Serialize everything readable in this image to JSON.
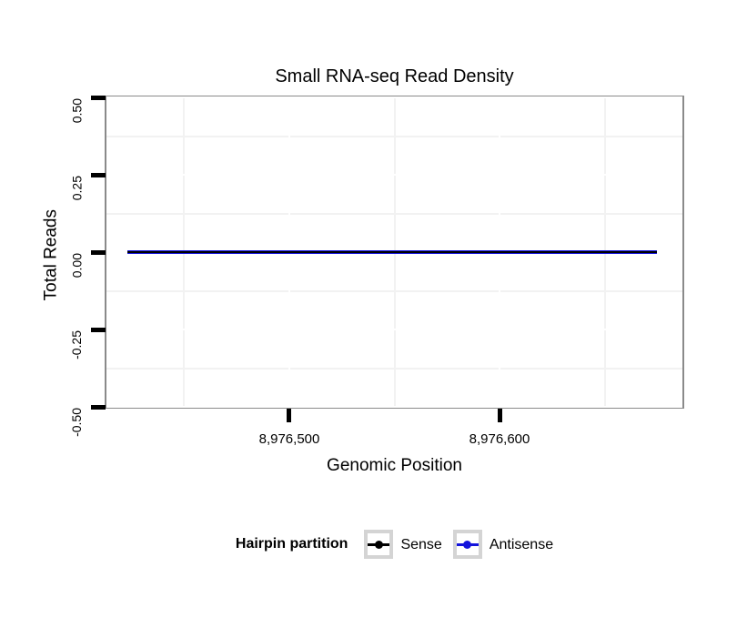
{
  "chart_data": {
    "type": "line",
    "title": "Small RNA-seq Read Density",
    "xlabel": "Genomic Position",
    "ylabel": "Total Reads",
    "x_axis": {
      "lim": [
        8976413,
        8976687
      ],
      "major_ticks": [
        {
          "value": 8976500,
          "label": "8,976,500"
        },
        {
          "value": 8976600,
          "label": "8,976,600"
        }
      ],
      "minor_ticks": [
        8976450,
        8976550,
        8976650
      ]
    },
    "y_axis": {
      "lim": [
        -0.5,
        0.5
      ],
      "major_ticks": [
        {
          "value": 0.5,
          "label": "0.50"
        },
        {
          "value": 0.25,
          "label": "0.25"
        },
        {
          "value": 0.0,
          "label": "0.00"
        },
        {
          "value": -0.25,
          "label": "-0.25"
        },
        {
          "value": -0.5,
          "label": "-0.50"
        }
      ],
      "minor_ticks": [
        0.375,
        0.125,
        -0.125,
        -0.375
      ]
    },
    "series": [
      {
        "name": "Antisense",
        "color": "#1414dc",
        "x": [
          8976423,
          8976675
        ],
        "y": [
          0,
          0
        ],
        "line_width": 4,
        "z": 1
      },
      {
        "name": "Sense",
        "color": "#000000",
        "x": [
          8976423,
          8976675
        ],
        "y": [
          0,
          0
        ],
        "line_width": 2,
        "z": 2
      }
    ],
    "legend": {
      "title": "Hairpin partition",
      "position": "bottom",
      "entries": [
        {
          "label": "Sense",
          "color": "#000000"
        },
        {
          "label": "Antisense",
          "color": "#1414dc"
        }
      ]
    },
    "grid": {
      "minor_color": "#f2f2f2",
      "major_color": "#ffffff",
      "grid_on": true
    },
    "panel_border_color": "#8a8a8a",
    "tick_color": "#000000"
  }
}
